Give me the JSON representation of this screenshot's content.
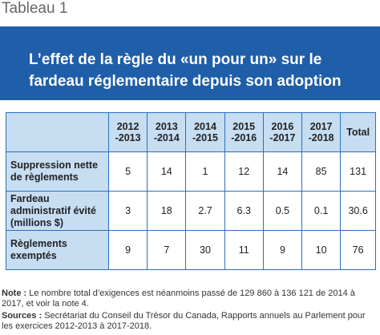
{
  "header": {
    "title": "Tableau 1"
  },
  "banner": {
    "title": "L’effet de la règle du «un pour un» sur le fardeau réglementaire depuis son adoption"
  },
  "table": {
    "columns": [
      "2012\n-2013",
      "2013\n-2014",
      "2014\n-2015",
      "2015\n-2016",
      "2016\n-2017",
      "2017\n-2018",
      "Total"
    ],
    "rows": [
      {
        "label": "Suppression nette\nde règlements",
        "cells": [
          5,
          14,
          1,
          12,
          14,
          85,
          131
        ]
      },
      {
        "label": "Fardeau\nadministratif évité\n(millions $)",
        "cells": [
          3,
          18,
          2.7,
          6.3,
          0.5,
          0.1,
          30.6
        ]
      },
      {
        "label": "Règlements\nexemptés",
        "cells": [
          9,
          7,
          30,
          11,
          9,
          10,
          76
        ]
      }
    ]
  },
  "notes": {
    "note_label": "Note :",
    "note_text": " Le nombre total d’exigences est néanmoins passé de 129 860 à 136 121 de 2014 à 2017, et voir la note 4.",
    "sources_label": "Sources :",
    "sources_text": " Secrétariat du Conseil du Trésor du Canada, Rapports annuels au Parlement pour les exercices 2012-2013 à 2017-2018."
  }
}
